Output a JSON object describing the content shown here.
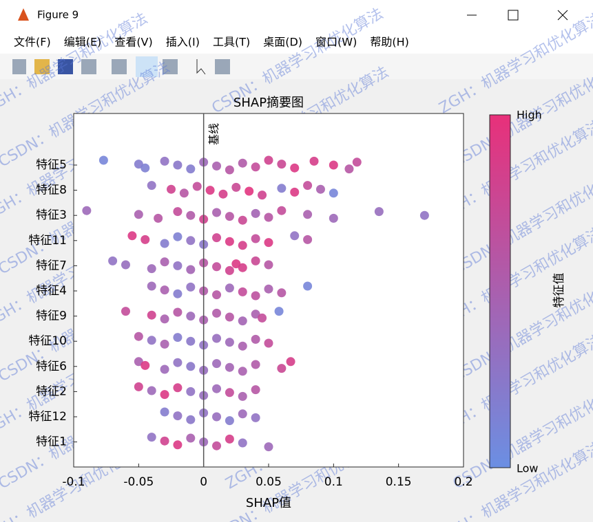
{
  "window": {
    "title": "Figure 9",
    "menu": [
      "文件(F)",
      "编辑(E)",
      "查看(V)",
      "插入(I)",
      "工具(T)",
      "桌面(D)",
      "窗口(W)",
      "帮助(H)"
    ],
    "watermark": [
      "ZGH：机器学习和优化算法",
      "CSDN：机器学习和优化算法"
    ]
  },
  "chart_data": {
    "type": "beeswarm",
    "title": "SHAP摘要图",
    "x_label": "SHAP值",
    "baseline_label": "基线",
    "categories": [
      "特征5",
      "特征8",
      "特征3",
      "特征11",
      "特征7",
      "特征4",
      "特征9",
      "特征10",
      "特征6",
      "特征2",
      "特征12",
      "特征1"
    ],
    "xlim": [
      -0.1,
      0.2
    ],
    "xticks": [
      -0.1,
      -0.05,
      0,
      0.05,
      0.1,
      0.15,
      0.2
    ],
    "colorbar": {
      "label": "特征值",
      "high": "High",
      "low": "Low",
      "colors": [
        "#6b8fe3",
        "#e8307a"
      ]
    },
    "points": [
      {
        "x": [
          -0.077,
          -0.05,
          -0.045,
          -0.03,
          -0.02,
          -0.01,
          0.0,
          0.01,
          0.02,
          0.03,
          0.04,
          0.05,
          0.06,
          0.07,
          0.085,
          0.1,
          0.112,
          0.118
        ],
        "feature_values": [
          0.1,
          0.2,
          0.15,
          0.3,
          0.25,
          0.2,
          0.4,
          0.5,
          0.6,
          0.55,
          0.7,
          0.8,
          0.75,
          0.9,
          0.85,
          0.9,
          0.6,
          0.7
        ]
      },
      {
        "x": [
          -0.04,
          -0.025,
          -0.015,
          -0.005,
          0.005,
          0.015,
          0.025,
          0.035,
          0.045,
          0.06,
          0.07,
          0.08,
          0.09,
          0.1
        ],
        "feature_values": [
          0.3,
          0.8,
          0.6,
          0.7,
          0.9,
          0.85,
          0.75,
          0.95,
          0.8,
          0.2,
          0.9,
          0.7,
          0.5,
          0.1
        ]
      },
      {
        "x": [
          -0.09,
          -0.05,
          -0.035,
          -0.02,
          -0.01,
          0.0,
          0.01,
          0.02,
          0.03,
          0.04,
          0.05,
          0.06,
          0.08,
          0.1,
          0.135,
          0.17
        ],
        "feature_values": [
          0.4,
          0.5,
          0.6,
          0.7,
          0.55,
          0.8,
          0.5,
          0.6,
          0.75,
          0.45,
          0.6,
          0.7,
          0.5,
          0.4,
          0.35,
          0.3
        ]
      },
      {
        "x": [
          -0.055,
          -0.045,
          -0.03,
          -0.02,
          -0.01,
          0.0,
          0.01,
          0.02,
          0.03,
          0.04,
          0.05,
          0.07,
          0.08
        ],
        "feature_values": [
          0.9,
          0.85,
          0.2,
          0.15,
          0.3,
          0.25,
          0.8,
          0.9,
          0.85,
          0.7,
          0.9,
          0.3,
          0.6
        ]
      },
      {
        "x": [
          -0.07,
          -0.06,
          -0.04,
          -0.03,
          -0.02,
          -0.01,
          0.0,
          0.01,
          0.02,
          0.025,
          0.03,
          0.04,
          0.05
        ],
        "feature_values": [
          0.3,
          0.35,
          0.4,
          0.5,
          0.3,
          0.45,
          0.6,
          0.7,
          0.8,
          0.9,
          0.85,
          0.75,
          0.6
        ]
      },
      {
        "x": [
          -0.04,
          -0.03,
          -0.02,
          -0.01,
          0.0,
          0.01,
          0.02,
          0.03,
          0.04,
          0.05,
          0.06,
          0.08
        ],
        "feature_values": [
          0.4,
          0.5,
          0.2,
          0.3,
          0.55,
          0.6,
          0.4,
          0.7,
          0.65,
          0.5,
          0.6,
          0.1
        ]
      },
      {
        "x": [
          -0.06,
          -0.04,
          -0.03,
          -0.02,
          -0.01,
          0.0,
          0.01,
          0.02,
          0.03,
          0.04,
          0.045,
          0.058
        ],
        "feature_values": [
          0.7,
          0.8,
          0.5,
          0.6,
          0.4,
          0.5,
          0.55,
          0.6,
          0.45,
          0.5,
          0.7,
          0.1
        ]
      },
      {
        "x": [
          -0.05,
          -0.04,
          -0.03,
          -0.02,
          -0.01,
          0.0,
          0.01,
          0.02,
          0.03,
          0.04,
          0.05
        ],
        "feature_values": [
          0.6,
          0.3,
          0.5,
          0.2,
          0.25,
          0.3,
          0.35,
          0.4,
          0.5,
          0.55,
          0.7
        ]
      },
      {
        "x": [
          -0.05,
          -0.045,
          -0.03,
          -0.02,
          -0.01,
          0.0,
          0.01,
          0.02,
          0.03,
          0.04,
          0.06,
          0.067
        ],
        "feature_values": [
          0.5,
          0.9,
          0.4,
          0.3,
          0.25,
          0.35,
          0.4,
          0.45,
          0.5,
          0.55,
          0.75,
          0.85
        ]
      },
      {
        "x": [
          -0.05,
          -0.04,
          -0.03,
          -0.02,
          -0.01,
          0.0,
          0.01,
          0.02,
          0.03,
          0.04
        ],
        "feature_values": [
          0.8,
          0.4,
          0.9,
          0.85,
          0.3,
          0.35,
          0.4,
          0.7,
          0.5,
          0.6
        ]
      },
      {
        "x": [
          -0.03,
          -0.02,
          -0.01,
          0.0,
          0.01,
          0.02,
          0.03,
          0.04
        ],
        "feature_values": [
          0.2,
          0.3,
          0.25,
          0.3,
          0.35,
          0.2,
          0.4,
          0.3
        ]
      },
      {
        "x": [
          -0.04,
          -0.03,
          -0.02,
          -0.01,
          0.0,
          0.01,
          0.02,
          0.03,
          0.05
        ],
        "feature_values": [
          0.3,
          0.8,
          0.9,
          0.5,
          0.4,
          0.7,
          0.85,
          0.3,
          0.4
        ]
      }
    ]
  }
}
